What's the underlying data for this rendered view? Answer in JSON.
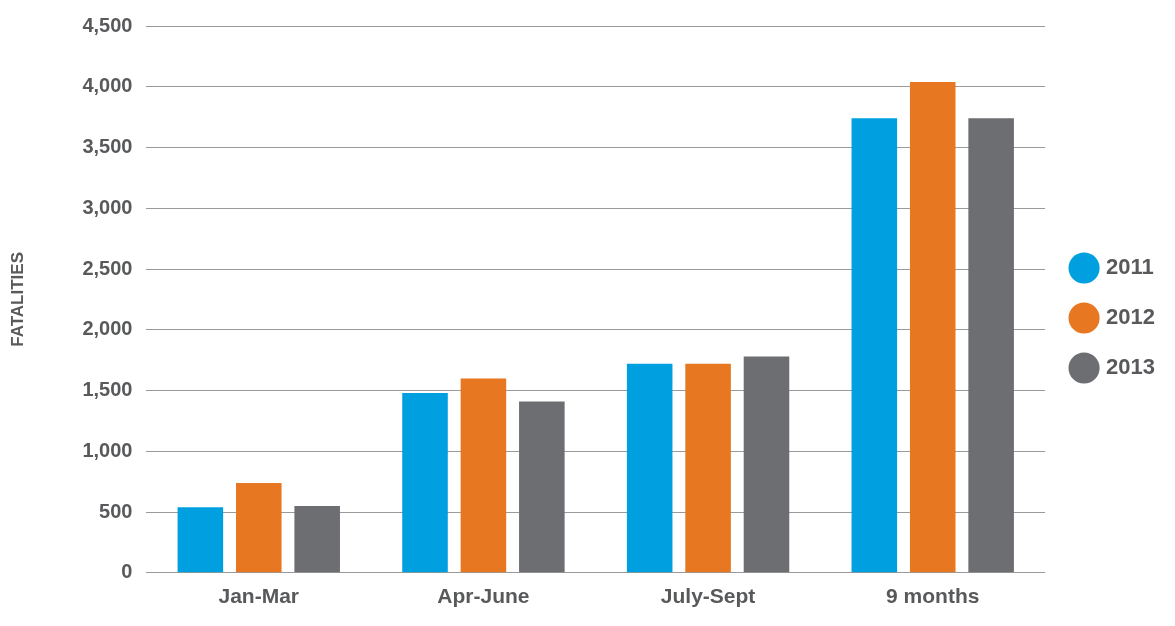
{
  "chart_data": {
    "type": "bar",
    "ylabel": "FATALITIES",
    "categories": [
      "Jan-Mar",
      "Apr-June",
      "July-Sept",
      "9 months"
    ],
    "series": [
      {
        "name": "2011",
        "color": "#00a0e0",
        "values": [
          540,
          1480,
          1720,
          3740
        ]
      },
      {
        "name": "2012",
        "color": "#e87722",
        "values": [
          740,
          1600,
          1720,
          4040
        ]
      },
      {
        "name": "2013",
        "color": "#6d6e71",
        "values": [
          550,
          1410,
          1780,
          3740
        ]
      }
    ],
    "ylim": [
      0,
      4500
    ],
    "yticks": [
      0,
      500,
      {
        "value": 1000,
        "label": "1,000"
      },
      {
        "value": 1500,
        "label": "1,500"
      },
      {
        "value": 2000,
        "label": "2,000"
      },
      {
        "value": 2500,
        "label": "2,500"
      },
      {
        "value": 3000,
        "label": "3,000"
      },
      {
        "value": 3500,
        "label": "3,500"
      },
      {
        "value": 4000,
        "label": "4,000"
      },
      {
        "value": 4500,
        "label": "4,500"
      }
    ],
    "grid": "y",
    "legend": "right"
  }
}
